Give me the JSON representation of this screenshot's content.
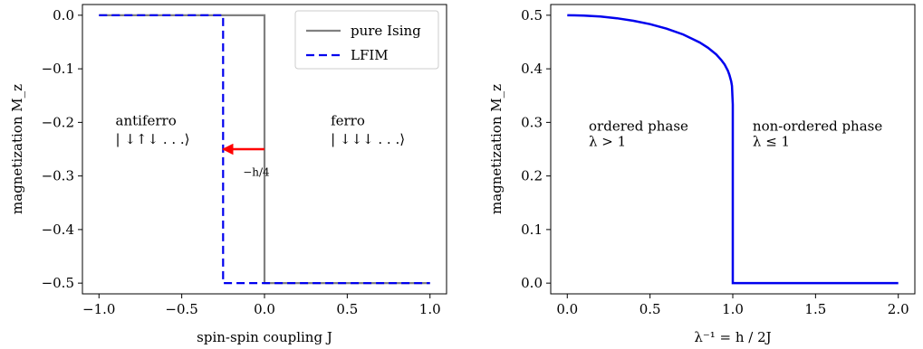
{
  "chart_data": [
    {
      "type": "line",
      "xlabel": "spin-spin coupling J",
      "ylabel": "magnetization M_z",
      "xlim": [
        -1.1,
        1.1
      ],
      "ylim": [
        -0.52,
        0.02
      ],
      "xticks": [
        -1.0,
        -0.5,
        0.0,
        0.5,
        1.0
      ],
      "xtick_labels": [
        "−1.0",
        "−0.5",
        "0.0",
        "0.5",
        "1.0"
      ],
      "yticks": [
        0.0,
        -0.1,
        -0.2,
        -0.3,
        -0.4,
        -0.5
      ],
      "ytick_labels": [
        "0.0",
        "−0.1",
        "−0.2",
        "−0.3",
        "−0.4",
        "−0.5"
      ],
      "grid": false,
      "legend_position": "top-right",
      "series": [
        {
          "name": "pure Ising",
          "color": "#808080",
          "style": "solid",
          "x": [
            -1.0,
            0.0,
            0.0,
            1.0
          ],
          "y": [
            0.0,
            0.0,
            -0.5,
            -0.5
          ]
        },
        {
          "name": "LFIM",
          "color": "#0000ee",
          "style": "dashed",
          "x": [
            -1.0,
            -0.25,
            -0.25,
            1.0
          ],
          "y": [
            0.0,
            0.0,
            -0.5,
            -0.5
          ]
        }
      ],
      "annotations": [
        {
          "text": "antiferro",
          "x": -0.9,
          "y": -0.205
        },
        {
          "text": "| ↓↑↓ . . .⟩",
          "x": -0.9,
          "y": -0.24
        },
        {
          "text": "ferro",
          "x": 0.4,
          "y": -0.205
        },
        {
          "text": "| ↓↓↓ . . .⟩",
          "x": 0.4,
          "y": -0.24
        },
        {
          "text": "−h/4",
          "x": -0.13,
          "y": -0.3,
          "color": "#ff0000"
        }
      ],
      "arrow": {
        "from": [
          0.0,
          -0.25
        ],
        "to": [
          -0.25,
          -0.25
        ],
        "color": "#ff0000"
      }
    },
    {
      "type": "line",
      "xlabel": "λ⁻¹ = h / 2J",
      "ylabel": "magnetization M_z",
      "xlim": [
        -0.1,
        2.1
      ],
      "ylim": [
        -0.02,
        0.52
      ],
      "xticks": [
        0.0,
        0.5,
        1.0,
        1.5,
        2.0
      ],
      "xtick_labels": [
        "0.0",
        "0.5",
        "1.0",
        "1.5",
        "2.0"
      ],
      "yticks": [
        0.0,
        0.1,
        0.2,
        0.3,
        0.4,
        0.5
      ],
      "ytick_labels": [
        "0.0",
        "0.1",
        "0.2",
        "0.3",
        "0.4",
        "0.5"
      ],
      "grid": false,
      "series": [
        {
          "color": "#0000ee",
          "style": "solid",
          "x": [
            0.0,
            0.1,
            0.2,
            0.3,
            0.4,
            0.5,
            0.6,
            0.7,
            0.8,
            0.85,
            0.9,
            0.93,
            0.95,
            0.97,
            0.98,
            0.99,
            0.995,
            1.0,
            1.0,
            2.0
          ],
          "y": [
            0.5,
            0.4994,
            0.4975,
            0.4943,
            0.4896,
            0.4833,
            0.475,
            0.4641,
            0.4492,
            0.4394,
            0.4268,
            0.4166,
            0.4083,
            0.3968,
            0.3886,
            0.3769,
            0.3681,
            0.3333,
            0.0,
            0.0
          ]
        }
      ],
      "annotations": [
        {
          "text": "ordered phase",
          "x": 0.13,
          "y": 0.285
        },
        {
          "text": "λ > 1",
          "x": 0.13,
          "y": 0.256
        },
        {
          "text": "non-ordered phase",
          "x": 1.12,
          "y": 0.285
        },
        {
          "text": "λ ≤ 1",
          "x": 1.12,
          "y": 0.256
        }
      ]
    }
  ]
}
